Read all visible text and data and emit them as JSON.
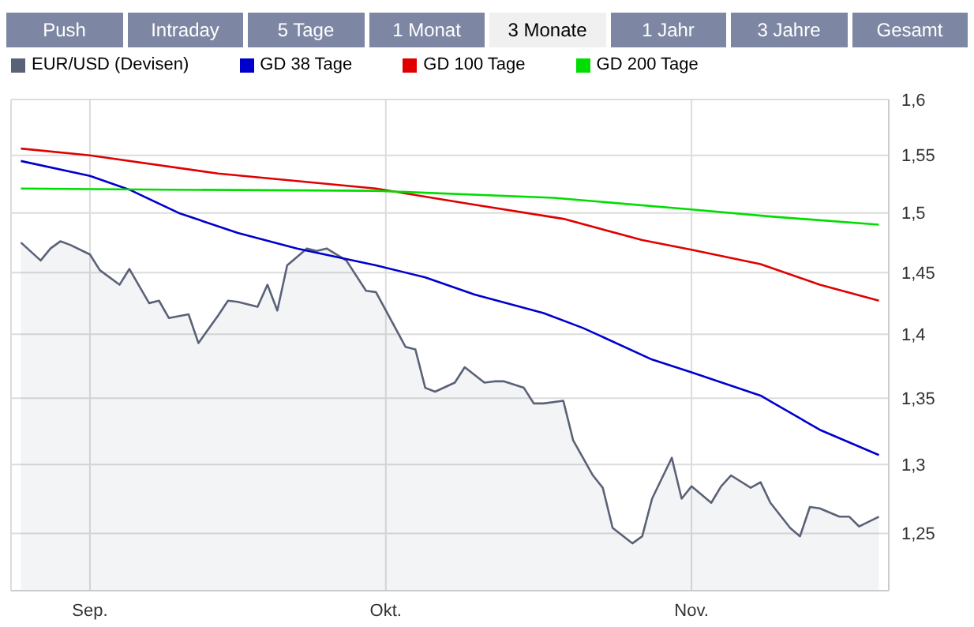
{
  "chart_data": {
    "type": "line",
    "annotations": [
      "Push",
      "Intraday",
      "5 Tage",
      "1 Monat",
      "3 Monate",
      "1 Jahr",
      "3 Jahre",
      "Gesamt"
    ],
    "xlim": [
      "--08-24",
      "--11-21"
    ],
    "xticks": [
      {
        "value": "--09-01",
        "label": "Sep."
      },
      {
        "value": "--10-01",
        "label": "Okt."
      },
      {
        "value": "--11-01",
        "label": "Nov."
      }
    ],
    "ylim": [
      1.21,
      1.6
    ],
    "yticks": [
      {
        "value": 1.25,
        "label": "1,25"
      },
      {
        "value": 1.3,
        "label": "1,3"
      },
      {
        "value": 1.35,
        "label": "1,35"
      },
      {
        "value": 1.4,
        "label": "1,4"
      },
      {
        "value": 1.45,
        "label": "1,45"
      },
      {
        "value": 1.5,
        "label": "1,5"
      },
      {
        "value": 1.55,
        "label": "1,55"
      },
      {
        "value": 1.6,
        "label": "1,6"
      }
    ],
    "log": "y",
    "grid": true,
    "legend": "top left",
    "marker": "none",
    "line_style": "solid",
    "series": [
      {
        "name": "EUR/USD (Devisen)",
        "type": "area",
        "color": "#5a6278",
        "x": [
          "--08-25",
          "--08-27",
          "--08-28",
          "--08-29",
          "--08-30",
          "--09-01",
          "--09-02",
          "--09-04",
          "--09-05",
          "--09-07",
          "--09-08",
          "--09-09",
          "--09-11",
          "--09-12",
          "--09-14",
          "--09-15",
          "--09-16",
          "--09-18",
          "--09-19",
          "--09-20",
          "--09-21",
          "--09-23",
          "--09-24",
          "--09-25",
          "--09-27",
          "--09-29",
          "--09-30",
          "--10-03",
          "--10-04",
          "--10-05",
          "--10-06",
          "--10-08",
          "--10-09",
          "--10-11",
          "--10-12",
          "--10-13",
          "--10-15",
          "--10-16",
          "--10-17",
          "--10-19",
          "--10-20",
          "--10-22",
          "--10-23",
          "--10-24",
          "--10-26",
          "--10-27",
          "--10-28",
          "--10-30",
          "--10-31",
          "--11-01",
          "--11-03",
          "--11-04",
          "--11-05",
          "--11-07",
          "--11-08",
          "--11-09",
          "--11-11",
          "--11-12",
          "--11-13",
          "--11-14",
          "--11-16",
          "--11-17",
          "--11-18",
          "--11-20"
        ],
        "values": [
          1.475,
          1.46,
          1.47,
          1.476,
          1.473,
          1.465,
          1.452,
          1.44,
          1.453,
          1.425,
          1.427,
          1.413,
          1.416,
          1.393,
          1.415,
          1.427,
          1.426,
          1.422,
          1.44,
          1.419,
          1.456,
          1.47,
          1.468,
          1.47,
          1.46,
          1.435,
          1.434,
          1.39,
          1.388,
          1.358,
          1.355,
          1.362,
          1.374,
          1.362,
          1.363,
          1.363,
          1.358,
          1.346,
          1.346,
          1.348,
          1.318,
          1.292,
          1.283,
          1.254,
          1.243,
          1.248,
          1.275,
          1.305,
          1.275,
          1.284,
          1.272,
          1.284,
          1.292,
          1.283,
          1.287,
          1.272,
          1.254,
          1.248,
          1.269,
          1.268,
          1.262,
          1.262,
          1.255,
          1.262
        ]
      },
      {
        "name": "GD 38 Tage",
        "color": "#0000cc",
        "x": [
          "--08-25",
          "--09-01",
          "--09-05",
          "--09-10",
          "--09-16",
          "--09-22",
          "--09-30",
          "--10-05",
          "--10-10",
          "--10-17",
          "--10-21",
          "--10-28",
          "--11-01",
          "--11-08",
          "--11-14",
          "--11-20"
        ],
        "values": [
          1.545,
          1.532,
          1.52,
          1.5,
          1.483,
          1.47,
          1.456,
          1.446,
          1.432,
          1.417,
          1.405,
          1.38,
          1.37,
          1.352,
          1.326,
          1.307
        ]
      },
      {
        "name": "GD 100 Tage",
        "color": "#e00000",
        "x": [
          "--08-25",
          "--09-01",
          "--09-14",
          "--09-30",
          "--10-10",
          "--10-19",
          "--10-27",
          "--11-01",
          "--11-08",
          "--11-14",
          "--11-20"
        ],
        "values": [
          1.556,
          1.55,
          1.534,
          1.521,
          1.507,
          1.495,
          1.477,
          1.469,
          1.457,
          1.44,
          1.427
        ]
      },
      {
        "name": "GD 200 Tage",
        "color": "#00dd00",
        "x": [
          "--08-25",
          "--09-09",
          "--09-30",
          "--10-18",
          "--11-01",
          "--11-09",
          "--11-20"
        ],
        "values": [
          1.521,
          1.52,
          1.519,
          1.513,
          1.503,
          1.497,
          1.49
        ]
      }
    ]
  }
}
